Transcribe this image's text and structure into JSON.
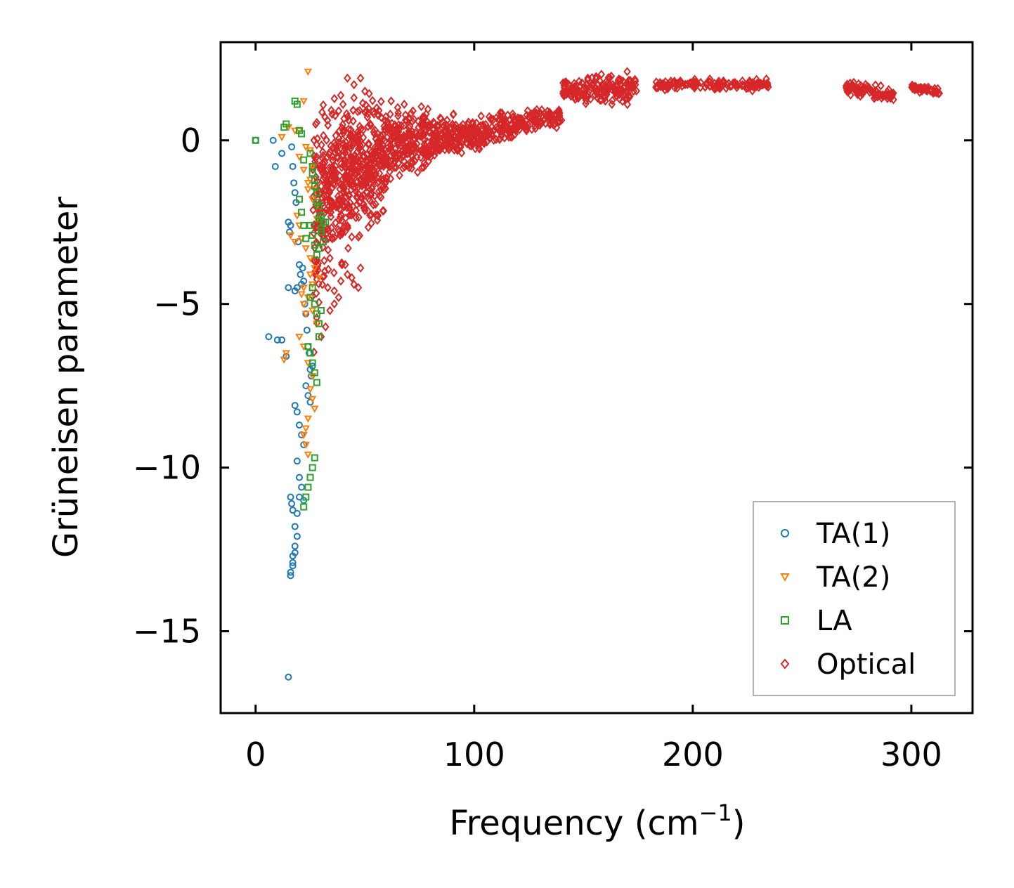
{
  "chart_data": {
    "type": "scatter",
    "title": "",
    "xlabel": "Frequency (cm",
    "xlabel_sup": "−1",
    "xlabel_close": ")",
    "ylabel": "Grüneisen parameter",
    "xlim": [
      -16,
      328
    ],
    "ylim": [
      -17.5,
      3.0
    ],
    "xticks": [
      0,
      100,
      200,
      300
    ],
    "xtick_labels": [
      "0",
      "100",
      "200",
      "300"
    ],
    "yticks": [
      0,
      -5,
      -10,
      -15
    ],
    "ytick_labels": [
      "0",
      "−5",
      "−10",
      "−15"
    ],
    "grid": false,
    "legend_position": "bottom-right",
    "series": [
      {
        "name": "TA(1)",
        "color": "#1f77b4",
        "marker": "circle",
        "x": [
          0,
          8,
          9,
          12,
          15,
          15.5,
          16,
          16.5,
          17,
          17.5,
          18,
          18.5,
          18,
          19,
          19.5,
          20,
          20.5,
          21,
          21.5,
          22,
          22.5,
          23,
          23.5,
          24,
          24.5,
          25,
          25.5,
          26,
          15,
          16,
          17,
          14,
          12,
          10,
          6,
          18,
          19,
          20,
          21,
          22,
          23,
          24,
          25,
          19,
          20,
          21,
          22,
          18,
          19,
          20,
          17,
          18,
          19,
          16,
          17,
          18,
          16,
          16.5,
          17,
          15
        ],
        "y": [
          0,
          0,
          -0.8,
          -0.4,
          -2.5,
          -2.8,
          -2.6,
          -0.2,
          -0.8,
          -1.3,
          -1.6,
          -1.9,
          -4.6,
          -4.5,
          -3.1,
          -3.8,
          -4.1,
          -4.4,
          -3.9,
          -4.3,
          -5.0,
          -5.3,
          -5.8,
          -6.3,
          -6.5,
          -7.0,
          -7.2,
          -6.9,
          -16.4,
          -13.3,
          -13.0,
          -6.6,
          -6.1,
          -6.1,
          -6.0,
          -8.1,
          -8.3,
          -8.7,
          -9.0,
          -9.3,
          -7.5,
          -7.8,
          -8.0,
          -9.8,
          -10.3,
          -10.6,
          -11.0,
          -11.8,
          -11.4,
          -10.9,
          -12.7,
          -12.4,
          -12.1,
          -13.2,
          -12.9,
          -12.6,
          -10.9,
          -11.1,
          -11.3,
          -4.5
        ]
      },
      {
        "name": "TA(2)",
        "color": "#ff7f0e",
        "marker": "triangle-down",
        "x": [
          12,
          15,
          18,
          20,
          22,
          24,
          25,
          26,
          27,
          28,
          20,
          22,
          24,
          26,
          28,
          21,
          23,
          25,
          27,
          29,
          22,
          24,
          26,
          28,
          20,
          22,
          24,
          26,
          25,
          26,
          27,
          24,
          23,
          22,
          23,
          24,
          25,
          26,
          21,
          22,
          23,
          24,
          25,
          14,
          13,
          16,
          18,
          19,
          20,
          23
        ],
        "y": [
          0.1,
          0.4,
          0.3,
          0.3,
          1.2,
          2.1,
          -0.3,
          -0.8,
          -1.5,
          -2.0,
          -0.5,
          -0.9,
          -1.3,
          -1.8,
          -2.4,
          -3.0,
          -3.3,
          -3.6,
          -3.9,
          -4.2,
          -4.5,
          -4.8,
          -5.2,
          -5.6,
          -6.0,
          -6.3,
          -6.8,
          -7.2,
          -7.6,
          -7.9,
          -8.2,
          -8.5,
          -8.8,
          -9.0,
          -9.3,
          -9.6,
          -4.1,
          -4.4,
          -4.7,
          -5.0,
          -5.3,
          -1.5,
          -1.2,
          -6.5,
          -6.7,
          -2.9,
          -3.1,
          -2.3,
          -2.6,
          -0.2
        ]
      },
      {
        "name": "LA",
        "color": "#2ca02c",
        "marker": "square",
        "x": [
          0,
          13,
          14,
          18,
          19,
          20,
          21,
          22,
          25,
          26,
          27,
          28,
          29,
          30,
          26,
          27,
          28,
          29,
          30,
          31,
          25,
          26,
          27,
          28,
          29,
          30,
          31,
          32,
          27,
          28,
          29,
          30,
          24,
          25,
          26,
          27,
          28,
          29,
          22,
          23,
          24,
          25,
          26,
          27,
          25,
          26,
          20,
          21,
          22,
          23
        ],
        "y": [
          0,
          0.4,
          0.5,
          1.2,
          1.1,
          0.3,
          0.2,
          -0.6,
          -0.4,
          -0.8,
          -1.2,
          -1.6,
          -2.0,
          -2.3,
          -1.0,
          -1.4,
          -1.9,
          -2.4,
          -2.8,
          -3.1,
          -2.6,
          -2.9,
          -3.2,
          -3.5,
          -3.3,
          -2.7,
          -2.5,
          -2.5,
          -5.0,
          -5.3,
          -5.6,
          -5.2,
          -6.3,
          -6.5,
          -6.8,
          -7.1,
          -7.4,
          -6.0,
          -11.2,
          -10.9,
          -10.6,
          -10.3,
          -10.0,
          -9.7,
          -4.8,
          -4.5,
          -1.8,
          -2.2,
          -2.6,
          -3.0
        ]
      },
      {
        "name": "Optical",
        "color": "#d62728",
        "marker": "diamond"
      }
    ],
    "optical_bands": [
      {
        "x": [
          26,
          33
        ],
        "center": [
          -3.0,
          -1.2
        ],
        "spread": [
          2.8,
          1.8
        ],
        "n": 120
      },
      {
        "x": [
          33,
          45
        ],
        "center": [
          -1.5,
          -0.8
        ],
        "spread": [
          2.0,
          1.5
        ],
        "n": 220
      },
      {
        "x": [
          45,
          60
        ],
        "center": [
          -1.0,
          -0.5
        ],
        "spread": [
          1.6,
          1.2
        ],
        "n": 240
      },
      {
        "x": [
          60,
          80
        ],
        "center": [
          -0.3,
          0.0
        ],
        "spread": [
          0.8,
          0.8
        ],
        "n": 200
      },
      {
        "x": [
          80,
          100
        ],
        "center": [
          0.0,
          0.2
        ],
        "spread": [
          0.5,
          0.4
        ],
        "n": 160
      },
      {
        "x": [
          100,
          120
        ],
        "center": [
          0.2,
          0.5
        ],
        "spread": [
          0.4,
          0.3
        ],
        "n": 120
      },
      {
        "x": [
          120,
          140
        ],
        "center": [
          0.5,
          0.8
        ],
        "spread": [
          0.25,
          0.3
        ],
        "n": 90
      },
      {
        "x": [
          140,
          175
        ],
        "center": [
          1.5,
          1.6
        ],
        "spread": [
          0.35,
          0.35
        ],
        "n": 160
      },
      {
        "x": [
          183,
          235
        ],
        "center": [
          1.7,
          1.7
        ],
        "spread": [
          0.12,
          0.12
        ],
        "n": 150
      },
      {
        "x": [
          270,
          292
        ],
        "center": [
          1.6,
          1.4
        ],
        "spread": [
          0.15,
          0.15
        ],
        "n": 80
      },
      {
        "x": [
          300,
          313
        ],
        "center": [
          1.6,
          1.5
        ],
        "spread": [
          0.08,
          0.08
        ],
        "n": 50
      }
    ],
    "optical_outliers": {
      "x": [
        42,
        45,
        48,
        50,
        45,
        40,
        35,
        38,
        41,
        44,
        47,
        65,
        62,
        68,
        72,
        78,
        148,
        152,
        170,
        172,
        160,
        163,
        33,
        36,
        39,
        42,
        45,
        48,
        30,
        32,
        34,
        36,
        38
      ],
      "y": [
        1.9,
        1.7,
        1.9,
        1.5,
        1.3,
        1.1,
        0.8,
        0.9,
        -3.8,
        -4.2,
        -4.5,
        1.0,
        1.2,
        1.1,
        0.9,
        0.8,
        1.8,
        1.9,
        2.1,
        1.7,
        1.2,
        1.1,
        -4.5,
        -4.6,
        -4.3,
        -4.1,
        -4.4,
        -3.9,
        -6.0,
        -5.7,
        -5.2,
        -5.0,
        -4.8
      ]
    }
  }
}
